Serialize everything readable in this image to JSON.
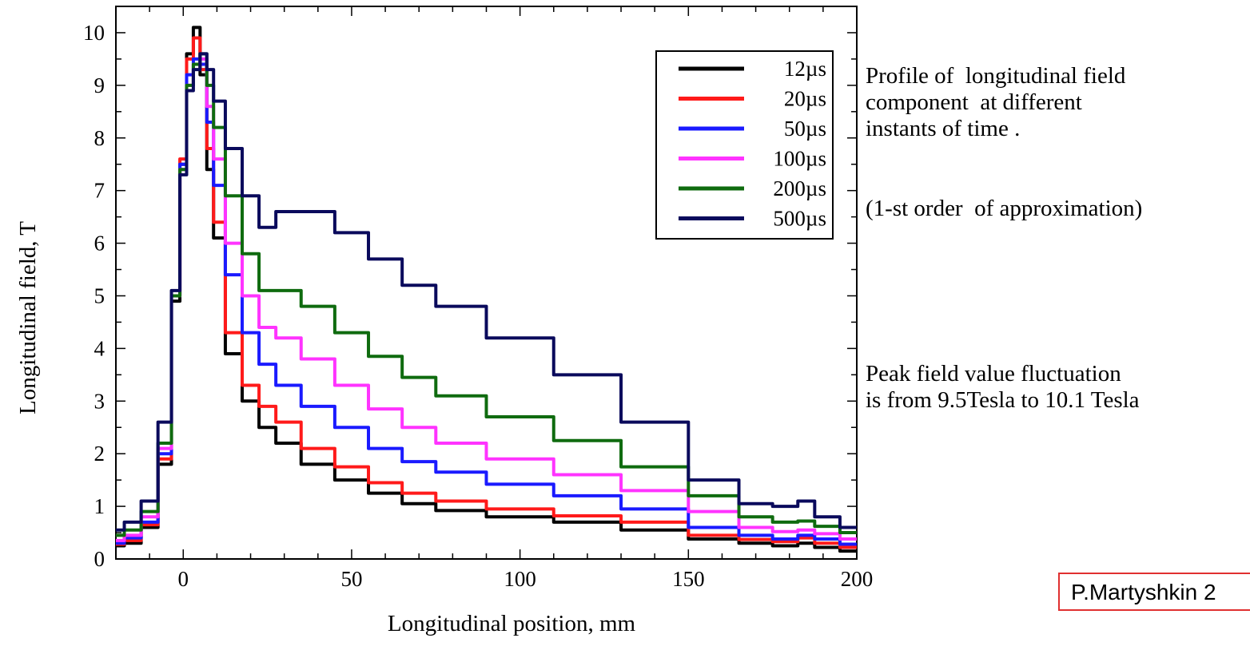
{
  "chart_data": {
    "type": "line",
    "xlabel": "Longitudinal position,  mm",
    "ylabel": "Longitudinal field,  T",
    "xlim": [
      -20,
      200
    ],
    "ylim": [
      0,
      10.5
    ],
    "xticks": [
      0,
      50,
      100,
      150,
      200
    ],
    "yticks": [
      0,
      1,
      2,
      3,
      4,
      5,
      6,
      7,
      8,
      9,
      10
    ],
    "legend_position": "top-right",
    "x": [
      -20,
      -15,
      -10,
      -5,
      -2,
      0,
      2,
      4,
      6,
      8,
      10,
      15,
      20,
      25,
      30,
      40,
      50,
      60,
      70,
      80,
      100,
      120,
      140,
      160,
      170,
      180,
      185,
      190,
      200
    ],
    "series": [
      {
        "name": "12µs",
        "color": "#000000",
        "values": [
          0.25,
          0.3,
          0.6,
          1.8,
          4.9,
          7.5,
          9.6,
          10.1,
          9.2,
          7.4,
          6.1,
          3.9,
          3.0,
          2.5,
          2.2,
          1.8,
          1.5,
          1.25,
          1.05,
          0.92,
          0.8,
          0.7,
          0.55,
          0.38,
          0.3,
          0.25,
          0.3,
          0.22,
          0.15
        ]
      },
      {
        "name": "20µs",
        "color": "#ff1a1a",
        "values": [
          0.28,
          0.35,
          0.65,
          1.9,
          5.0,
          7.6,
          9.5,
          9.9,
          9.3,
          7.8,
          6.4,
          4.3,
          3.3,
          2.9,
          2.6,
          2.1,
          1.75,
          1.45,
          1.25,
          1.1,
          0.95,
          0.82,
          0.7,
          0.45,
          0.37,
          0.33,
          0.4,
          0.3,
          0.22
        ]
      },
      {
        "name": "50µs",
        "color": "#1a1aff",
        "values": [
          0.3,
          0.4,
          0.7,
          2.0,
          5.0,
          7.5,
          9.2,
          9.5,
          9.4,
          8.3,
          7.1,
          5.4,
          4.3,
          3.7,
          3.3,
          2.9,
          2.5,
          2.1,
          1.85,
          1.65,
          1.42,
          1.2,
          0.95,
          0.6,
          0.45,
          0.38,
          0.45,
          0.38,
          0.28
        ]
      },
      {
        "name": "100µs",
        "color": "#ff33ff",
        "values": [
          0.35,
          0.45,
          0.8,
          2.1,
          5.0,
          7.4,
          9.0,
          9.4,
          9.5,
          8.6,
          7.6,
          6.0,
          5.0,
          4.4,
          4.2,
          3.8,
          3.3,
          2.85,
          2.5,
          2.2,
          1.9,
          1.6,
          1.3,
          0.9,
          0.6,
          0.52,
          0.55,
          0.48,
          0.38
        ]
      },
      {
        "name": "200µs",
        "color": "#0f6b0f",
        "values": [
          0.45,
          0.55,
          0.9,
          2.2,
          5.0,
          7.4,
          9.0,
          9.4,
          9.6,
          9.0,
          8.2,
          6.9,
          5.8,
          5.1,
          5.1,
          4.8,
          4.3,
          3.85,
          3.45,
          3.1,
          2.7,
          2.25,
          1.75,
          1.2,
          0.8,
          0.7,
          0.72,
          0.62,
          0.5
        ]
      },
      {
        "name": "500µs",
        "color": "#0a0a5c",
        "values": [
          0.55,
          0.7,
          1.1,
          2.6,
          5.1,
          7.3,
          8.9,
          9.3,
          9.6,
          9.3,
          8.7,
          7.8,
          6.9,
          6.3,
          6.6,
          6.6,
          6.2,
          5.7,
          5.2,
          4.8,
          4.2,
          3.5,
          2.6,
          1.5,
          1.05,
          1.0,
          1.1,
          0.8,
          0.6
        ]
      }
    ]
  },
  "notes": {
    "profile": "Profile of  longitudinal field\ncomponent  at different\ninstants of time .",
    "approximation": "(1-st order  of approximation)",
    "peak": "Peak field value fluctuation\nis from 9.5Tesla to 10.1 Tesla",
    "credit": "P.Martyshkin 2"
  }
}
